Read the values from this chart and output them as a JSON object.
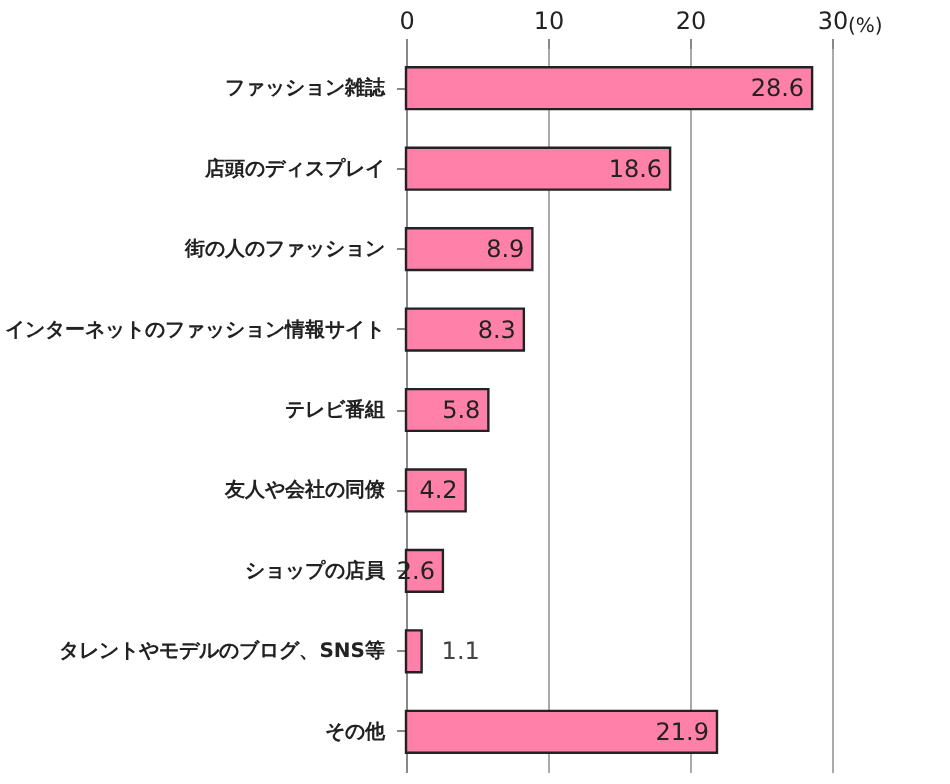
{
  "chart_data": {
    "type": "bar",
    "orientation": "horizontal",
    "xlabel": "(%)",
    "categories": [
      "ファッション雑誌",
      "店頭のディスプレイ",
      "街の人のファッション",
      "インターネットのファッション情報サイト",
      "テレビ番組",
      "友人や会社の同僚",
      "ショップの店員",
      "タレントやモデルのブログ、SNS等",
      "その他"
    ],
    "values": [
      28.6,
      18.6,
      8.9,
      8.3,
      5.8,
      4.2,
      2.6,
      1.1,
      21.9
    ],
    "color": "#ff80a8",
    "xlim": [
      0,
      30
    ],
    "xticks": [
      0,
      10,
      20,
      30
    ],
    "grid": "x",
    "data_labels": true
  }
}
